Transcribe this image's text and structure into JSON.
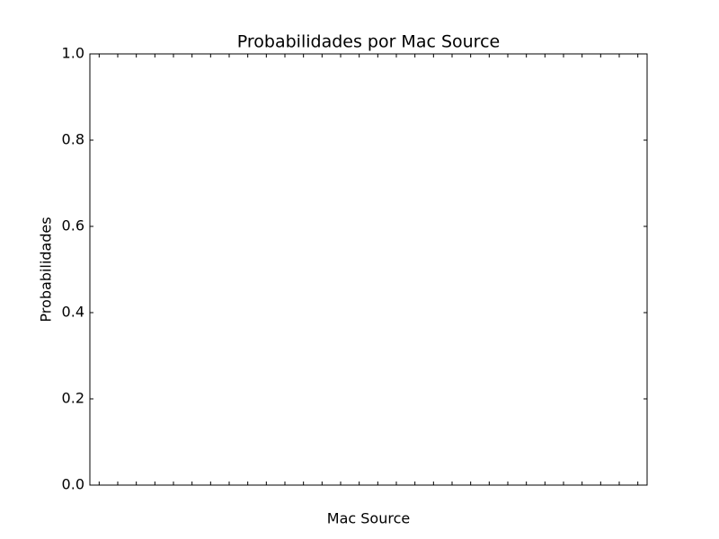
{
  "chart_data": {
    "type": "bar",
    "title": "Probabilidades por Mac Source",
    "xlabel": "Mac Source",
    "ylabel": "Probabilidades",
    "categories": [
      null,
      null,
      null,
      null,
      null,
      null,
      null,
      null,
      null,
      null,
      null,
      null,
      null,
      null,
      null,
      null,
      null,
      null,
      null,
      null,
      null,
      null,
      null,
      null,
      null,
      null,
      null,
      null,
      null,
      null
    ],
    "values": [
      0,
      0,
      0,
      0,
      0,
      0,
      0,
      0,
      0,
      0,
      0,
      0,
      0,
      0,
      0,
      0,
      0,
      0,
      0,
      0,
      0,
      0,
      0,
      0,
      0,
      0,
      0,
      0,
      0,
      0
    ],
    "color": "#0000ff",
    "ylim": [
      0,
      1
    ],
    "yticks": [
      {
        "value": 0,
        "label": "0.0"
      },
      0.2,
      0.4,
      0.6,
      0.8,
      {
        "value": 1,
        "label": "1.0"
      }
    ],
    "grid": false
  }
}
